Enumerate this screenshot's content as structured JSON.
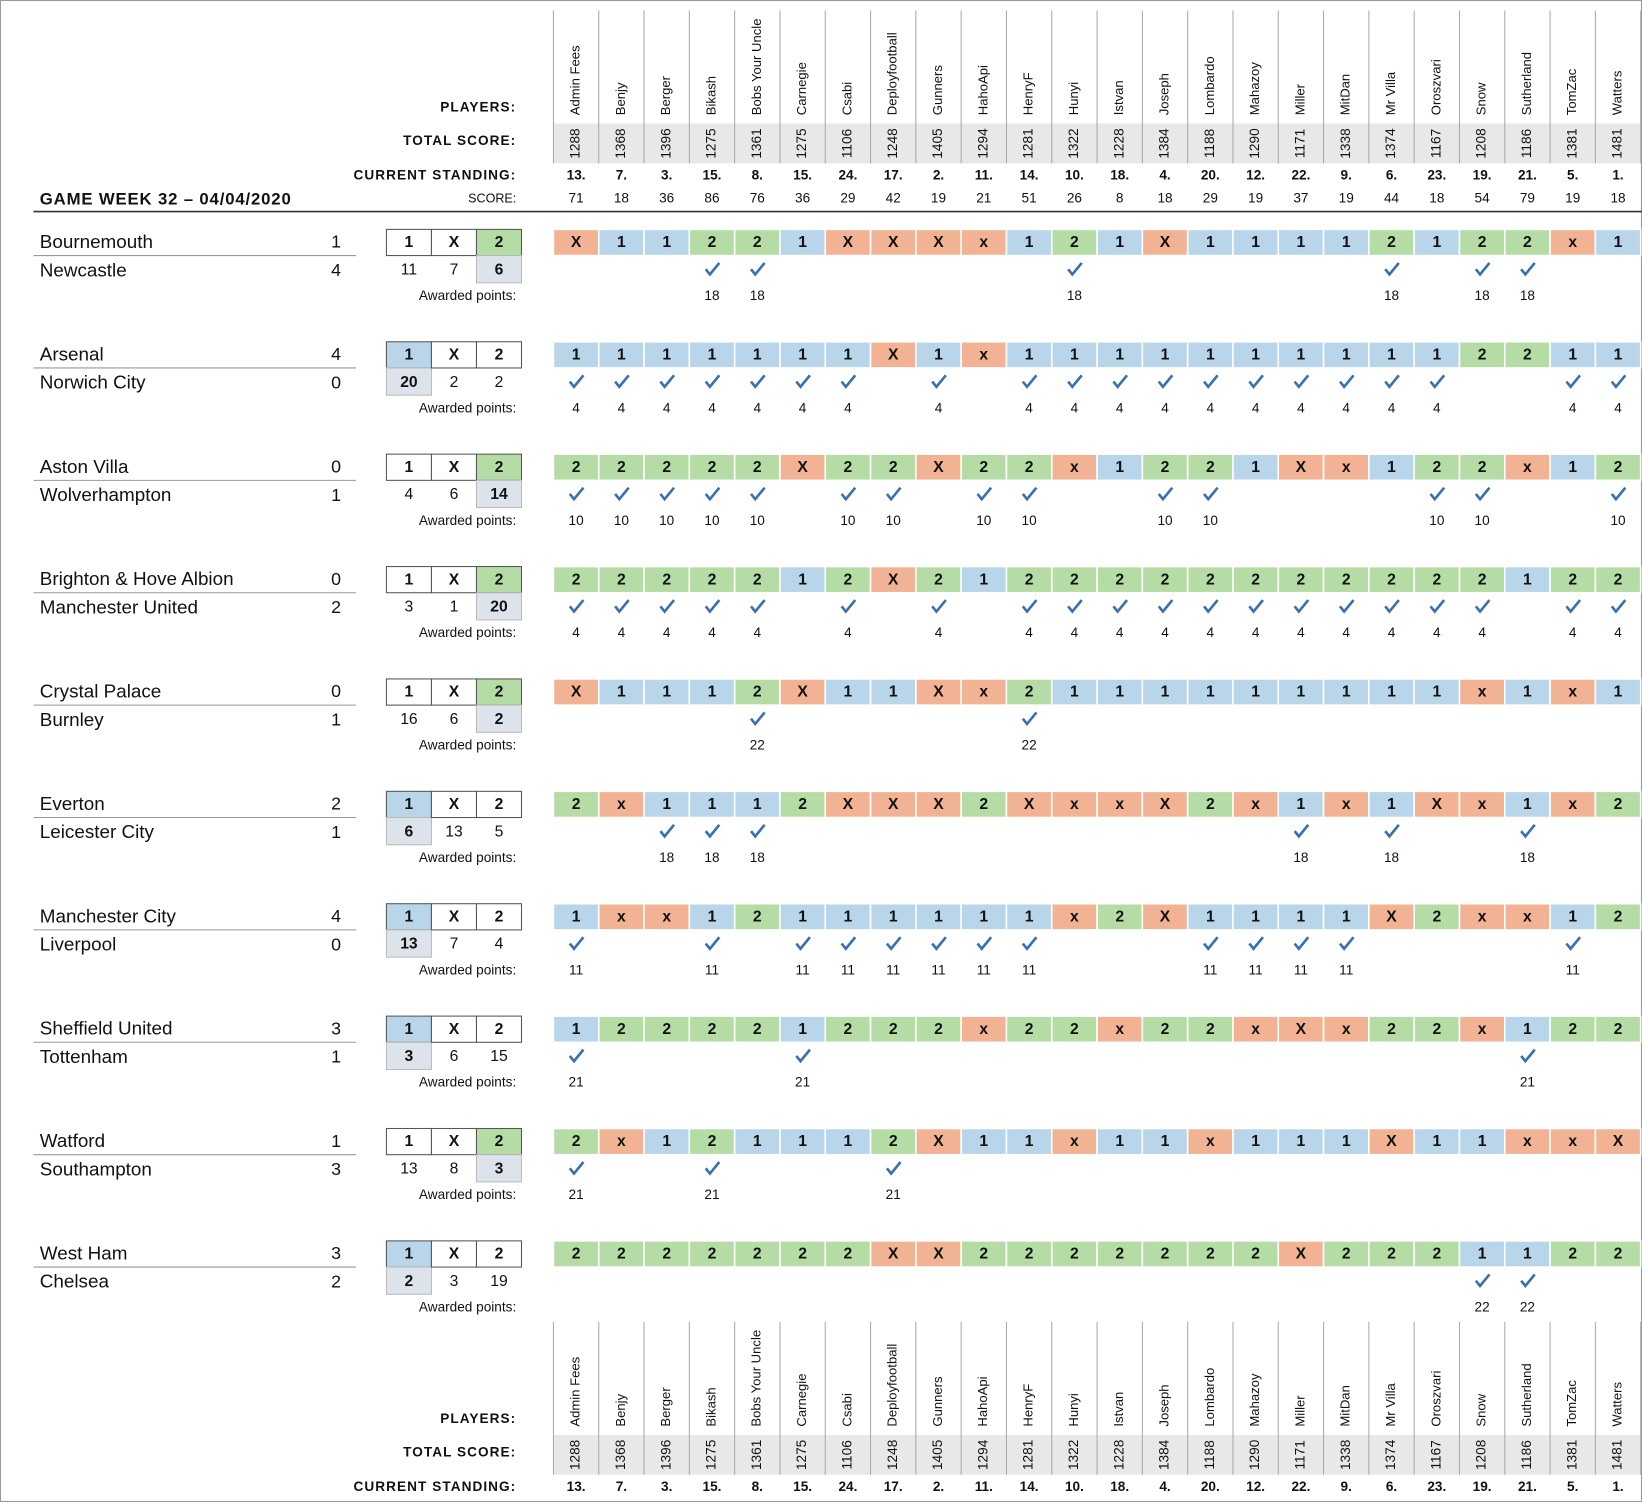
{
  "header": {
    "title": "GAME WEEK 32 – 04/04/2020",
    "players_label": "PLAYERS:",
    "total_label": "TOTAL SCORE:",
    "standing_label": "CURRENT STANDING:",
    "score_label": "SCORE:",
    "awarded_label": "Awarded points:"
  },
  "tip_labels": [
    "1",
    "X",
    "2"
  ],
  "colors": {
    "1": "#b8d5ea",
    "2": "#b6dca6",
    "X": "#f1b394",
    "x": "#f1b394"
  },
  "players": [
    {
      "name": "Admin Fees",
      "total": 1288,
      "standing": "13.",
      "score": 71
    },
    {
      "name": "Benjy",
      "total": 1368,
      "standing": "7.",
      "score": 18
    },
    {
      "name": "Berger",
      "total": 1396,
      "standing": "3.",
      "score": 36
    },
    {
      "name": "Bikash",
      "total": 1275,
      "standing": "15.",
      "score": 86
    },
    {
      "name": "Bobs Your Uncle",
      "total": 1361,
      "standing": "8.",
      "score": 76
    },
    {
      "name": "Carnegie",
      "total": 1275,
      "standing": "15.",
      "score": 36
    },
    {
      "name": "Csabi",
      "total": 1106,
      "standing": "24.",
      "score": 29
    },
    {
      "name": "Deployfootball",
      "total": 1248,
      "standing": "17.",
      "score": 42
    },
    {
      "name": "Gunners",
      "total": 1405,
      "standing": "2.",
      "score": 19
    },
    {
      "name": "HahoApi",
      "total": 1294,
      "standing": "11.",
      "score": 21
    },
    {
      "name": "HenryF",
      "total": 1281,
      "standing": "14.",
      "score": 51
    },
    {
      "name": "Hunyi",
      "total": 1322,
      "standing": "10.",
      "score": 26
    },
    {
      "name": "Istvan",
      "total": 1228,
      "standing": "18.",
      "score": 8
    },
    {
      "name": "Joseph",
      "total": 1384,
      "standing": "4.",
      "score": 18
    },
    {
      "name": "Lombardo",
      "total": 1188,
      "standing": "20.",
      "score": 29
    },
    {
      "name": "Mahazoy",
      "total": 1290,
      "standing": "12.",
      "score": 19
    },
    {
      "name": "Miller",
      "total": 1171,
      "standing": "22.",
      "score": 37
    },
    {
      "name": "MitDan",
      "total": 1338,
      "standing": "9.",
      "score": 19
    },
    {
      "name": "Mr Villa",
      "total": 1374,
      "standing": "6.",
      "score": 44
    },
    {
      "name": "Oroszvari",
      "total": 1167,
      "standing": "23.",
      "score": 18
    },
    {
      "name": "Snow",
      "total": 1208,
      "standing": "19.",
      "score": 54
    },
    {
      "name": "Sutherland",
      "total": 1186,
      "standing": "21.",
      "score": 79
    },
    {
      "name": "TomZac",
      "total": 1381,
      "standing": "5.",
      "score": 19
    },
    {
      "name": "Watters",
      "total": 1481,
      "standing": "1.",
      "score": 18
    }
  ],
  "matches": [
    {
      "home": "Bournemouth",
      "away": "Newcastle",
      "home_goals": 1,
      "away_goals": 4,
      "tips": [
        11,
        7,
        6
      ],
      "result": "2",
      "picks": [
        "X",
        "1",
        "1",
        "2",
        "2",
        "1",
        "X",
        "X",
        "X",
        "x",
        "1",
        "2",
        "1",
        "X",
        "1",
        "1",
        "1",
        "1",
        "2",
        "1",
        "2",
        "2",
        "x",
        "1"
      ],
      "awarded": [
        null,
        null,
        null,
        18,
        18,
        null,
        null,
        null,
        null,
        null,
        null,
        18,
        null,
        null,
        null,
        null,
        null,
        null,
        18,
        null,
        18,
        18,
        null,
        null
      ]
    },
    {
      "home": "Arsenal",
      "away": "Norwich City",
      "home_goals": 4,
      "away_goals": 0,
      "tips": [
        20,
        2,
        2
      ],
      "result": "1",
      "picks": [
        "1",
        "1",
        "1",
        "1",
        "1",
        "1",
        "1",
        "X",
        "1",
        "x",
        "1",
        "1",
        "1",
        "1",
        "1",
        "1",
        "1",
        "1",
        "1",
        "1",
        "2",
        "2",
        "1",
        "1"
      ],
      "awarded": [
        4,
        4,
        4,
        4,
        4,
        4,
        4,
        null,
        4,
        null,
        4,
        4,
        4,
        4,
        4,
        4,
        4,
        4,
        4,
        4,
        null,
        null,
        4,
        4
      ]
    },
    {
      "home": "Aston Villa",
      "away": "Wolverhampton",
      "home_goals": 0,
      "away_goals": 1,
      "tips": [
        4,
        6,
        14
      ],
      "result": "2",
      "picks": [
        "2",
        "2",
        "2",
        "2",
        "2",
        "X",
        "2",
        "2",
        "X",
        "2",
        "2",
        "x",
        "1",
        "2",
        "2",
        "1",
        "X",
        "x",
        "1",
        "2",
        "2",
        "x",
        "1",
        "2"
      ],
      "awarded": [
        10,
        10,
        10,
        10,
        10,
        null,
        10,
        10,
        null,
        10,
        10,
        null,
        null,
        10,
        10,
        null,
        null,
        null,
        null,
        10,
        10,
        null,
        null,
        10
      ]
    },
    {
      "home": "Brighton & Hove Albion",
      "away": "Manchester United",
      "home_goals": 0,
      "away_goals": 2,
      "tips": [
        3,
        1,
        20
      ],
      "result": "2",
      "picks": [
        "2",
        "2",
        "2",
        "2",
        "2",
        "1",
        "2",
        "X",
        "2",
        "1",
        "2",
        "2",
        "2",
        "2",
        "2",
        "2",
        "2",
        "2",
        "2",
        "2",
        "2",
        "1",
        "2",
        "2"
      ],
      "awarded": [
        4,
        4,
        4,
        4,
        4,
        null,
        4,
        null,
        4,
        null,
        4,
        4,
        4,
        4,
        4,
        4,
        4,
        4,
        4,
        4,
        4,
        null,
        4,
        4
      ]
    },
    {
      "home": "Crystal Palace",
      "away": "Burnley",
      "home_goals": 0,
      "away_goals": 1,
      "tips": [
        16,
        6,
        2
      ],
      "result": "2",
      "picks": [
        "X",
        "1",
        "1",
        "1",
        "2",
        "X",
        "1",
        "1",
        "X",
        "x",
        "2",
        "1",
        "1",
        "1",
        "1",
        "1",
        "1",
        "1",
        "1",
        "1",
        "x",
        "1",
        "x",
        "1"
      ],
      "awarded": [
        null,
        null,
        null,
        null,
        22,
        null,
        null,
        null,
        null,
        null,
        22,
        null,
        null,
        null,
        null,
        null,
        null,
        null,
        null,
        null,
        null,
        null,
        null,
        null
      ]
    },
    {
      "home": "Everton",
      "away": "Leicester City",
      "home_goals": 2,
      "away_goals": 1,
      "tips": [
        6,
        13,
        5
      ],
      "result": "1",
      "picks": [
        "2",
        "x",
        "1",
        "1",
        "1",
        "2",
        "X",
        "X",
        "X",
        "2",
        "X",
        "x",
        "x",
        "X",
        "2",
        "x",
        "1",
        "x",
        "1",
        "X",
        "x",
        "1",
        "x",
        "2"
      ],
      "awarded": [
        null,
        null,
        18,
        18,
        18,
        null,
        null,
        null,
        null,
        null,
        null,
        null,
        null,
        null,
        null,
        null,
        18,
        null,
        18,
        null,
        null,
        18,
        null,
        null
      ]
    },
    {
      "home": "Manchester City",
      "away": "Liverpool",
      "home_goals": 4,
      "away_goals": 0,
      "tips": [
        13,
        7,
        4
      ],
      "result": "1",
      "picks": [
        "1",
        "x",
        "x",
        "1",
        "2",
        "1",
        "1",
        "1",
        "1",
        "1",
        "1",
        "x",
        "2",
        "X",
        "1",
        "1",
        "1",
        "1",
        "X",
        "2",
        "x",
        "x",
        "1",
        "2"
      ],
      "awarded": [
        11,
        null,
        null,
        11,
        null,
        11,
        11,
        11,
        11,
        11,
        11,
        null,
        null,
        null,
        11,
        11,
        11,
        11,
        null,
        null,
        null,
        null,
        11,
        null
      ]
    },
    {
      "home": "Sheffield United",
      "away": "Tottenham",
      "home_goals": 3,
      "away_goals": 1,
      "tips": [
        3,
        6,
        15
      ],
      "result": "1",
      "picks": [
        "1",
        "2",
        "2",
        "2",
        "2",
        "1",
        "2",
        "2",
        "2",
        "x",
        "2",
        "2",
        "x",
        "2",
        "2",
        "x",
        "X",
        "x",
        "2",
        "2",
        "x",
        "1",
        "2",
        "2"
      ],
      "awarded": [
        21,
        null,
        null,
        null,
        null,
        21,
        null,
        null,
        null,
        null,
        null,
        null,
        null,
        null,
        null,
        null,
        null,
        null,
        null,
        null,
        null,
        21,
        null,
        null
      ]
    },
    {
      "home": "Watford",
      "away": "Southampton",
      "home_goals": 1,
      "away_goals": 3,
      "tips": [
        13,
        8,
        3
      ],
      "result": "2",
      "picks": [
        "2",
        "x",
        "1",
        "2",
        "1",
        "1",
        "1",
        "2",
        "X",
        "1",
        "1",
        "x",
        "1",
        "1",
        "x",
        "1",
        "1",
        "1",
        "X",
        "1",
        "1",
        "x",
        "x",
        "X"
      ],
      "awarded": [
        21,
        null,
        null,
        21,
        null,
        null,
        null,
        21,
        null,
        null,
        null,
        null,
        null,
        null,
        null,
        null,
        null,
        null,
        null,
        null,
        null,
        null,
        null,
        null
      ]
    },
    {
      "home": "West Ham",
      "away": "Chelsea",
      "home_goals": 3,
      "away_goals": 2,
      "tips": [
        2,
        3,
        19
      ],
      "result": "1",
      "picks": [
        "2",
        "2",
        "2",
        "2",
        "2",
        "2",
        "2",
        "X",
        "X",
        "2",
        "2",
        "2",
        "2",
        "2",
        "2",
        "2",
        "X",
        "2",
        "2",
        "2",
        "1",
        "1",
        "2",
        "2"
      ],
      "awarded": [
        null,
        null,
        null,
        null,
        null,
        null,
        null,
        null,
        null,
        null,
        null,
        null,
        null,
        null,
        null,
        null,
        null,
        null,
        null,
        null,
        22,
        22,
        null,
        null
      ]
    }
  ]
}
